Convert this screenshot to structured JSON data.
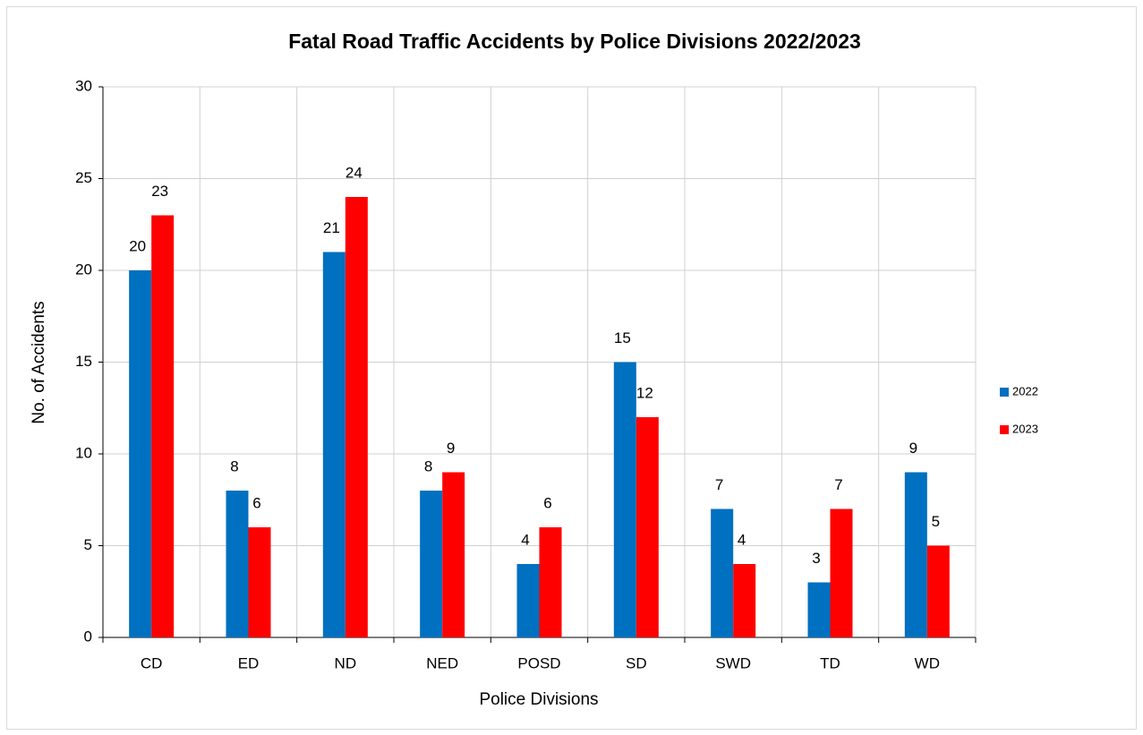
{
  "chart_data": {
    "type": "bar",
    "title": "Fatal Road Traffic Accidents by Police Divisions 2022/2023",
    "x_label": "Police Divisions",
    "y_label": "No. of Accidents",
    "categories": [
      "CD",
      "ED",
      "ND",
      "NED",
      "POSD",
      "SD",
      "SWD",
      "TD",
      "WD"
    ],
    "series": [
      {
        "name": "2022",
        "color": "#0070c0",
        "values": [
          20,
          8,
          21,
          8,
          4,
          15,
          7,
          3,
          9
        ]
      },
      {
        "name": "2023",
        "color": "#ff0000",
        "values": [
          23,
          6,
          24,
          9,
          6,
          12,
          4,
          7,
          5
        ]
      }
    ],
    "ylim": [
      0,
      30
    ],
    "yticks": [
      0,
      5,
      10,
      15,
      20,
      25,
      30
    ],
    "grid": true,
    "legend": "right"
  }
}
